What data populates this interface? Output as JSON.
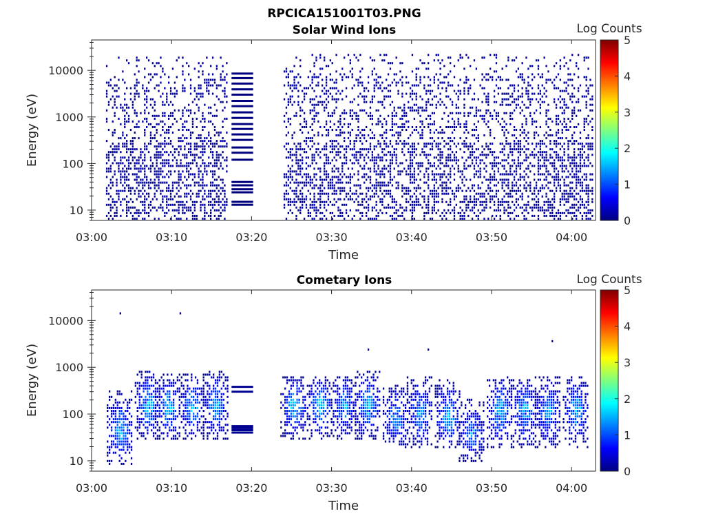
{
  "figure": {
    "title": "RPCICA151001T03.PNG"
  },
  "colormap": {
    "name": "jet",
    "stops": [
      "#00007f",
      "#0000ff",
      "#007fff",
      "#00ffff",
      "#7fff7f",
      "#ffff00",
      "#ff7f00",
      "#ff0000",
      "#7f0000"
    ]
  },
  "chart_data": [
    {
      "type": "heatmap",
      "title": "Solar Wind Ions",
      "xlabel": "Time",
      "ylabel": "Energy (eV)",
      "colorbar_label": "Log Counts",
      "x_ticks": [
        "03:00",
        "03:10",
        "03:20",
        "03:30",
        "03:40",
        "03:50",
        "04:00"
      ],
      "x_tick_minutes": [
        0,
        10,
        20,
        30,
        40,
        50,
        60
      ],
      "xlim_minutes": [
        0,
        63
      ],
      "y_scale": "log",
      "y_ticks": [
        "10",
        "100",
        "1000",
        "10000"
      ],
      "y_tick_values": [
        10,
        100,
        1000,
        10000
      ],
      "ylim": [
        6,
        45000
      ],
      "color_range": [
        0,
        5
      ],
      "colorbar_ticks": [
        "0",
        "1",
        "2",
        "3",
        "4",
        "5"
      ],
      "data_gap_minutes": [
        20.2,
        24.0
      ],
      "segments": [
        {
          "x_range": [
            1.8,
            17.0
          ],
          "e_range": [
            10,
            18000
          ],
          "mode": "scatter",
          "density": 0.5,
          "level": 0.3
        },
        {
          "x_range": [
            17.5,
            20.2
          ],
          "energies": [
            13,
            15,
            24,
            28,
            34,
            40,
            120,
            170,
            220,
            320,
            420,
            550,
            700,
            950,
            1250,
            1700,
            2200,
            3000,
            3900,
            5200,
            6800,
            8500
          ],
          "mode": "lines",
          "level": 0.0
        },
        {
          "x_range": [
            24.0,
            62.5
          ],
          "e_range": [
            10,
            20000
          ],
          "mode": "scatter",
          "density": 0.5,
          "level": 0.3
        }
      ]
    },
    {
      "type": "heatmap",
      "title": "Cometary Ions",
      "xlabel": "Time",
      "ylabel": "Energy (eV)",
      "colorbar_label": "Log Counts",
      "x_ticks": [
        "03:00",
        "03:10",
        "03:20",
        "03:30",
        "03:40",
        "03:50",
        "04:00"
      ],
      "x_tick_minutes": [
        0,
        10,
        20,
        30,
        40,
        50,
        60
      ],
      "xlim_minutes": [
        0,
        63
      ],
      "y_scale": "log",
      "y_ticks": [
        "10",
        "100",
        "1000",
        "10000"
      ],
      "y_tick_values": [
        10,
        100,
        1000,
        10000
      ],
      "ylim": [
        6,
        45000
      ],
      "color_range": [
        0,
        5
      ],
      "colorbar_ticks": [
        "0",
        "1",
        "2",
        "3",
        "4",
        "5"
      ],
      "data_gap_minutes": [
        20.2,
        24.0
      ],
      "bursts": [
        {
          "t": 3.5,
          "e_center": 40,
          "e_low": 8,
          "e_high": 300,
          "peak_log_counts": 1.6
        },
        {
          "t": 7.0,
          "e_center": 150,
          "e_low": 30,
          "e_high": 800,
          "peak_log_counts": 1.8
        },
        {
          "t": 9.5,
          "e_center": 130,
          "e_low": 30,
          "e_high": 700,
          "peak_log_counts": 1.7
        },
        {
          "t": 12.5,
          "e_center": 140,
          "e_low": 30,
          "e_high": 700,
          "peak_log_counts": 1.7
        },
        {
          "t": 15.5,
          "e_center": 150,
          "e_low": 30,
          "e_high": 800,
          "peak_log_counts": 1.6
        },
        {
          "t": 25.2,
          "e_center": 160,
          "e_low": 30,
          "e_high": 600,
          "peak_log_counts": 1.9
        },
        {
          "t": 28.5,
          "e_center": 170,
          "e_low": 30,
          "e_high": 600,
          "peak_log_counts": 1.8
        },
        {
          "t": 31.5,
          "e_center": 150,
          "e_low": 30,
          "e_high": 600,
          "peak_log_counts": 1.5
        },
        {
          "t": 34.5,
          "e_center": 160,
          "e_low": 30,
          "e_high": 800,
          "peak_log_counts": 1.7
        },
        {
          "t": 38.0,
          "e_center": 80,
          "e_low": 20,
          "e_high": 400,
          "peak_log_counts": 1.5
        },
        {
          "t": 41.0,
          "e_center": 100,
          "e_low": 20,
          "e_high": 600,
          "peak_log_counts": 1.5
        },
        {
          "t": 44.5,
          "e_center": 80,
          "e_low": 20,
          "e_high": 500,
          "peak_log_counts": 1.7
        },
        {
          "t": 47.5,
          "e_center": 40,
          "e_low": 10,
          "e_high": 200,
          "peak_log_counts": 1.3
        },
        {
          "t": 51.0,
          "e_center": 120,
          "e_low": 20,
          "e_high": 600,
          "peak_log_counts": 1.7
        },
        {
          "t": 54.0,
          "e_center": 130,
          "e_low": 20,
          "e_high": 600,
          "peak_log_counts": 1.6
        },
        {
          "t": 57.0,
          "e_center": 110,
          "e_low": 20,
          "e_high": 600,
          "peak_log_counts": 1.5
        },
        {
          "t": 60.5,
          "e_center": 130,
          "e_low": 20,
          "e_high": 600,
          "peak_log_counts": 1.6
        }
      ],
      "lines_segment": {
        "x_range": [
          17.5,
          20.2
        ],
        "energies": [
          40,
          45,
          50,
          55,
          300,
          380
        ],
        "level": 0.1
      },
      "outliers": [
        {
          "t": 3.5,
          "e": 13500
        },
        {
          "t": 11.0,
          "e": 15000
        },
        {
          "t": 34.5,
          "e": 2400
        },
        {
          "t": 42.0,
          "e": 2400
        },
        {
          "t": 57.5,
          "e": 3600
        }
      ]
    }
  ]
}
